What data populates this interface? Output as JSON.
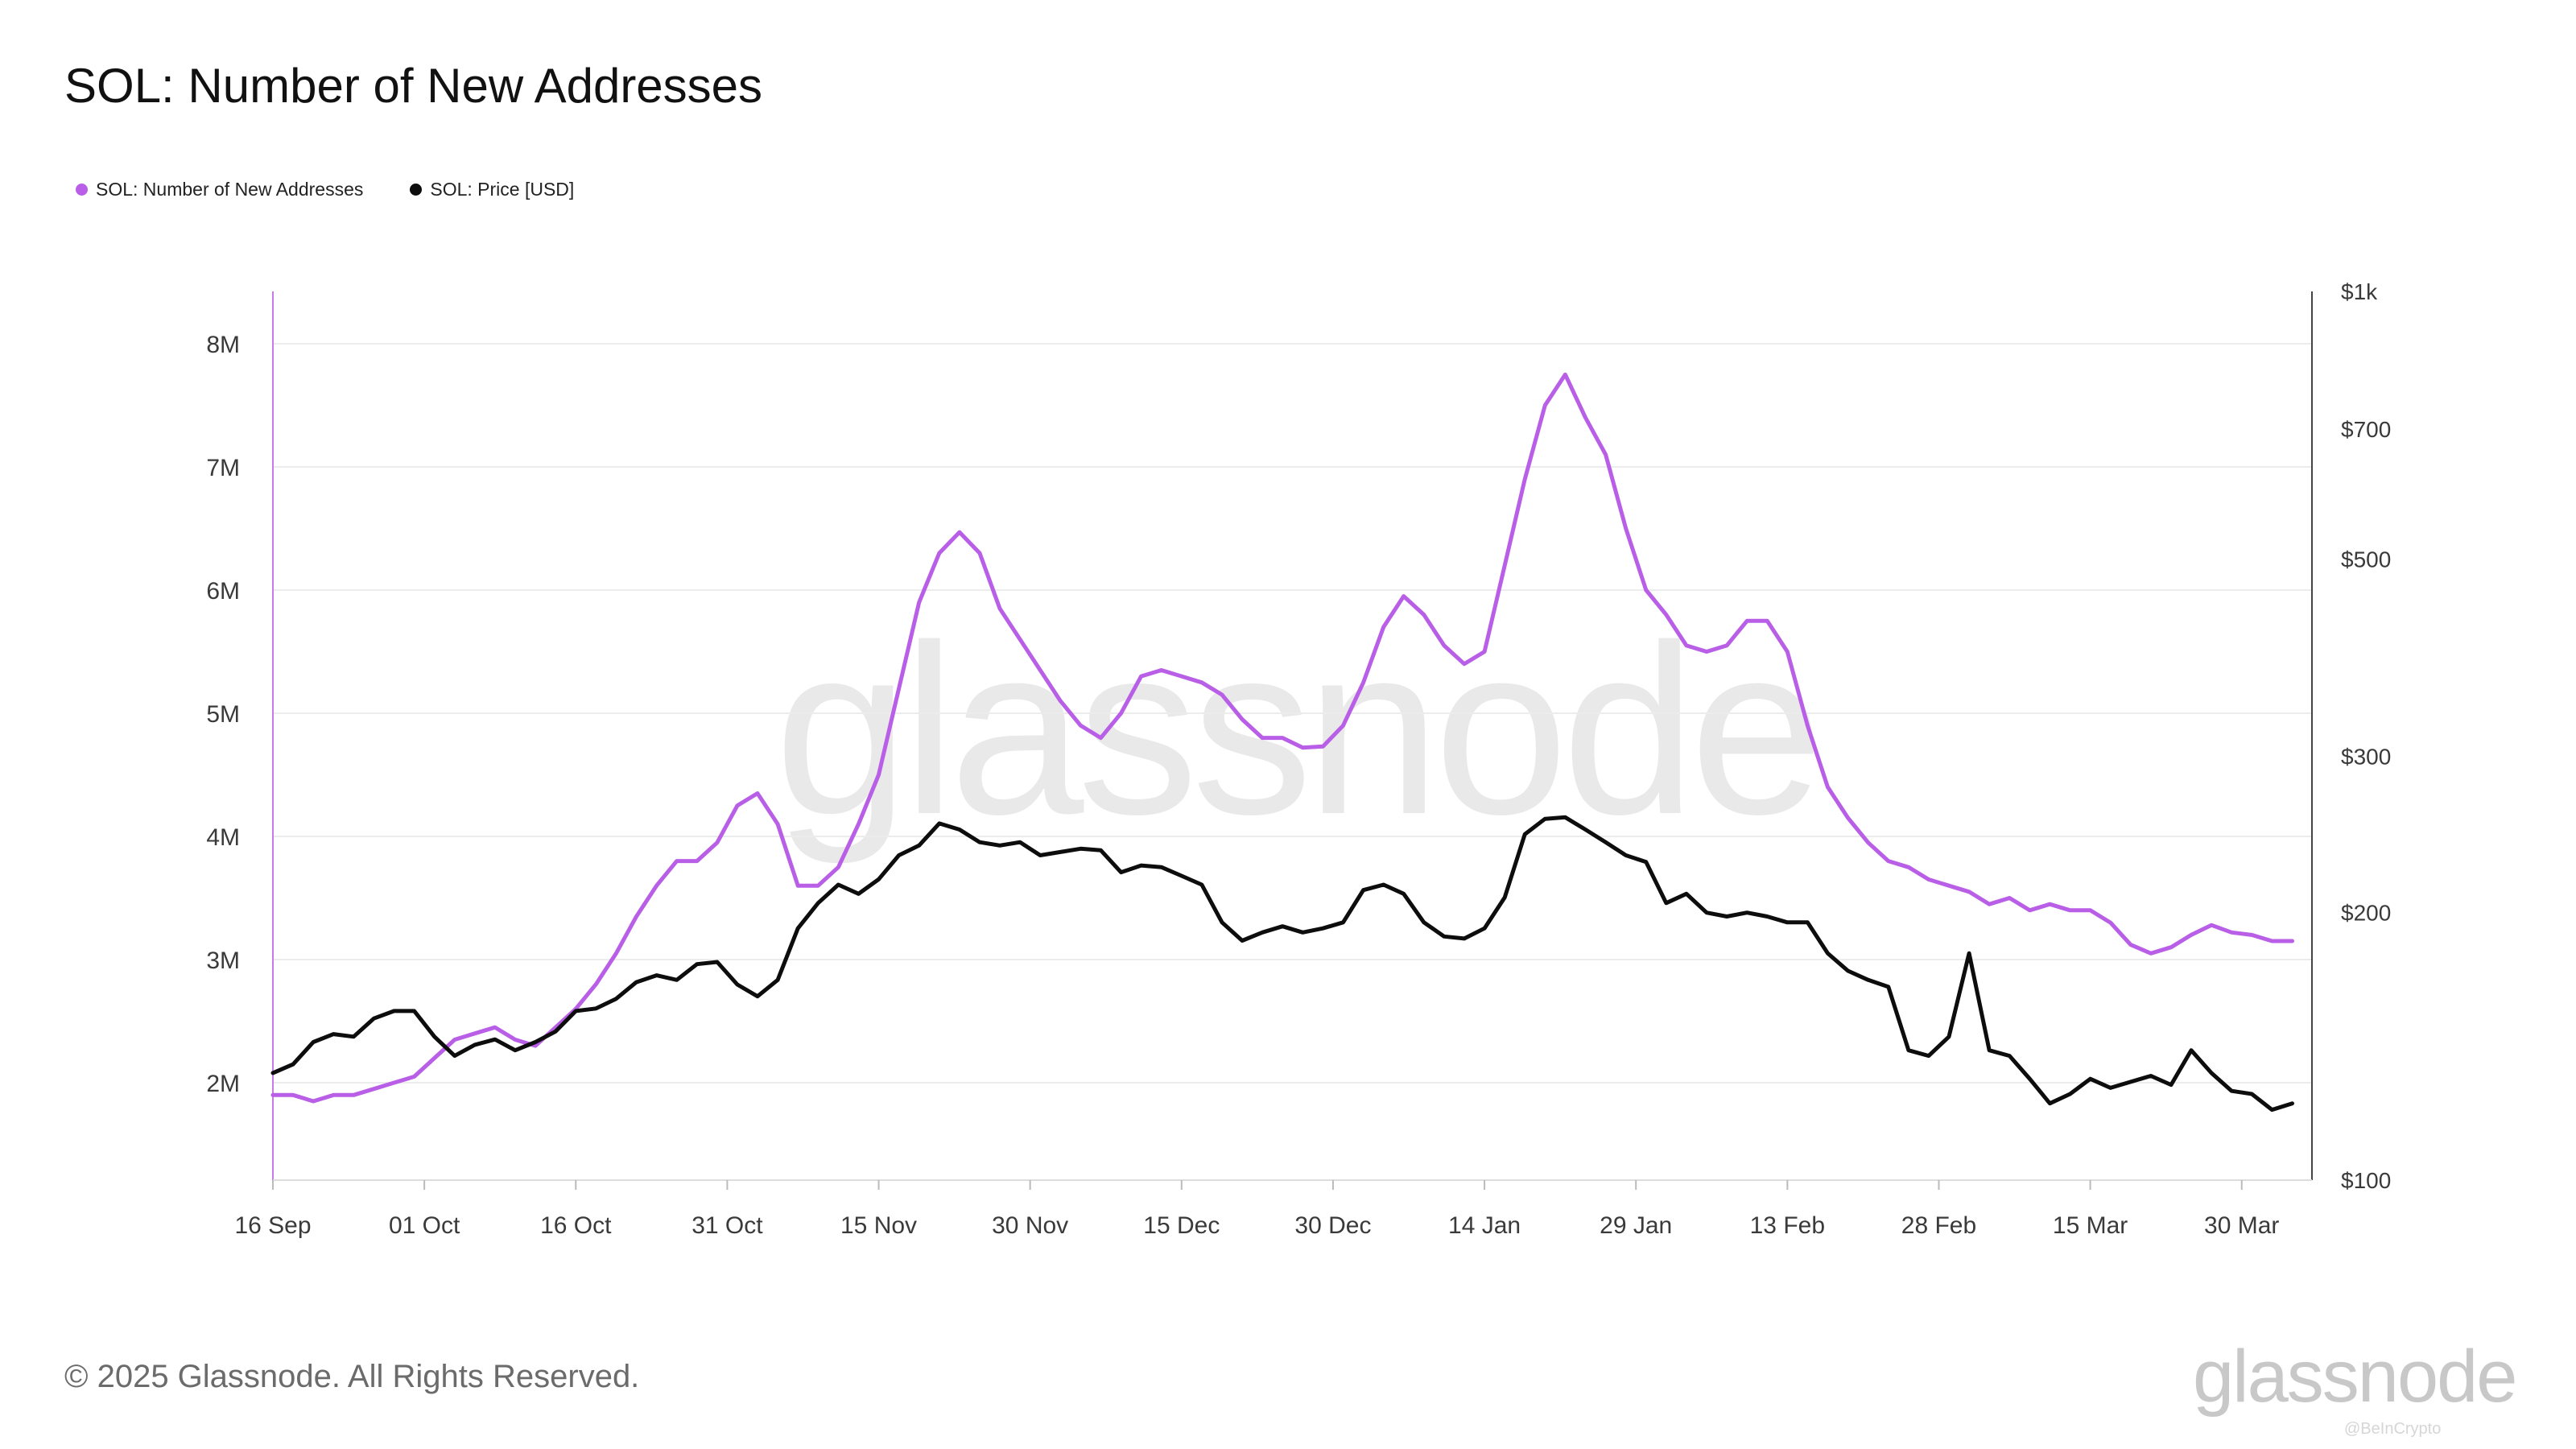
{
  "title": "SOL: Number of New Addresses",
  "legend": [
    {
      "label": "SOL: Number of New Addresses",
      "color": "#b95ee6"
    },
    {
      "label": "SOL: Price [USD]",
      "color": "#0d0d0d"
    }
  ],
  "watermark": "glassnode",
  "copyright": "© 2025 Glassnode. All Rights Reserved.",
  "footer_logo": "glassnode",
  "credit": "@BeInCrypto",
  "chart_data": {
    "type": "line",
    "title": "SOL: Number of New Addresses",
    "x_axis": {
      "type": "date",
      "start": "2024-09-16",
      "end": "2025-04-05",
      "ticks": [
        "16 Sep",
        "01 Oct",
        "16 Oct",
        "31 Oct",
        "15 Nov",
        "30 Nov",
        "15 Dec",
        "30 Dec",
        "14 Jan",
        "29 Jan",
        "13 Feb",
        "28 Feb",
        "15 Mar",
        "30 Mar"
      ]
    },
    "y_left": {
      "ticks": [
        "2M",
        "3M",
        "4M",
        "5M",
        "6M",
        "7M",
        "8M"
      ],
      "range": [
        1.2,
        8.4
      ],
      "unit": "M"
    },
    "y_right": {
      "scale": "log",
      "ticks": [
        "$100",
        "$200",
        "$300",
        "$500",
        "$700",
        "$1k"
      ],
      "tick_values": [
        100,
        200,
        300,
        500,
        700,
        1000
      ]
    },
    "grid": "horizontal",
    "legend_position": "top-left",
    "series": [
      {
        "name": "SOL: Number of New Addresses",
        "axis": "left",
        "color": "#b95ee6",
        "points": [
          [
            "2024-09-16",
            1.9
          ],
          [
            "2024-09-18",
            1.9
          ],
          [
            "2024-09-20",
            1.85
          ],
          [
            "2024-09-22",
            1.9
          ],
          [
            "2024-09-24",
            1.9
          ],
          [
            "2024-09-26",
            1.95
          ],
          [
            "2024-09-28",
            2.0
          ],
          [
            "2024-09-30",
            2.05
          ],
          [
            "2024-10-02",
            2.2
          ],
          [
            "2024-10-04",
            2.35
          ],
          [
            "2024-10-06",
            2.4
          ],
          [
            "2024-10-08",
            2.45
          ],
          [
            "2024-10-10",
            2.35
          ],
          [
            "2024-10-12",
            2.3
          ],
          [
            "2024-10-14",
            2.45
          ],
          [
            "2024-10-16",
            2.6
          ],
          [
            "2024-10-18",
            2.8
          ],
          [
            "2024-10-20",
            3.05
          ],
          [
            "2024-10-22",
            3.35
          ],
          [
            "2024-10-24",
            3.6
          ],
          [
            "2024-10-26",
            3.8
          ],
          [
            "2024-10-28",
            3.8
          ],
          [
            "2024-10-30",
            3.95
          ],
          [
            "2024-11-01",
            4.25
          ],
          [
            "2024-11-03",
            4.35
          ],
          [
            "2024-11-05",
            4.1
          ],
          [
            "2024-11-07",
            3.6
          ],
          [
            "2024-11-09",
            3.6
          ],
          [
            "2024-11-11",
            3.75
          ],
          [
            "2024-11-13",
            4.1
          ],
          [
            "2024-11-15",
            4.5
          ],
          [
            "2024-11-17",
            5.2
          ],
          [
            "2024-11-19",
            5.9
          ],
          [
            "2024-11-21",
            6.3
          ],
          [
            "2024-11-23",
            6.47
          ],
          [
            "2024-11-25",
            6.3
          ],
          [
            "2024-11-27",
            5.85
          ],
          [
            "2024-11-29",
            5.6
          ],
          [
            "2024-12-01",
            5.35
          ],
          [
            "2024-12-03",
            5.1
          ],
          [
            "2024-12-05",
            4.9
          ],
          [
            "2024-12-07",
            4.8
          ],
          [
            "2024-12-09",
            5.0
          ],
          [
            "2024-12-11",
            5.3
          ],
          [
            "2024-12-13",
            5.35
          ],
          [
            "2024-12-15",
            5.3
          ],
          [
            "2024-12-17",
            5.25
          ],
          [
            "2024-12-19",
            5.15
          ],
          [
            "2024-12-21",
            4.95
          ],
          [
            "2024-12-23",
            4.8
          ],
          [
            "2024-12-25",
            4.8
          ],
          [
            "2024-12-27",
            4.72
          ],
          [
            "2024-12-29",
            4.73
          ],
          [
            "2024-12-31",
            4.9
          ],
          [
            "2025-01-02",
            5.25
          ],
          [
            "2025-01-04",
            5.7
          ],
          [
            "2025-01-06",
            5.95
          ],
          [
            "2025-01-08",
            5.8
          ],
          [
            "2025-01-10",
            5.55
          ],
          [
            "2025-01-12",
            5.4
          ],
          [
            "2025-01-14",
            5.5
          ],
          [
            "2025-01-16",
            6.2
          ],
          [
            "2025-01-18",
            6.9
          ],
          [
            "2025-01-20",
            7.5
          ],
          [
            "2025-01-22",
            7.75
          ],
          [
            "2025-01-24",
            7.4
          ],
          [
            "2025-01-26",
            7.1
          ],
          [
            "2025-01-28",
            6.5
          ],
          [
            "2025-01-30",
            6.0
          ],
          [
            "2025-02-01",
            5.8
          ],
          [
            "2025-02-03",
            5.55
          ],
          [
            "2025-02-05",
            5.5
          ],
          [
            "2025-02-07",
            5.55
          ],
          [
            "2025-02-09",
            5.75
          ],
          [
            "2025-02-11",
            5.75
          ],
          [
            "2025-02-13",
            5.5
          ],
          [
            "2025-02-15",
            4.9
          ],
          [
            "2025-02-17",
            4.4
          ],
          [
            "2025-02-19",
            4.15
          ],
          [
            "2025-02-21",
            3.95
          ],
          [
            "2025-02-23",
            3.8
          ],
          [
            "2025-02-25",
            3.75
          ],
          [
            "2025-02-27",
            3.65
          ],
          [
            "2025-03-01",
            3.6
          ],
          [
            "2025-03-03",
            3.55
          ],
          [
            "2025-03-05",
            3.45
          ],
          [
            "2025-03-07",
            3.5
          ],
          [
            "2025-03-09",
            3.4
          ],
          [
            "2025-03-11",
            3.45
          ],
          [
            "2025-03-13",
            3.4
          ],
          [
            "2025-03-15",
            3.4
          ],
          [
            "2025-03-17",
            3.3
          ],
          [
            "2025-03-19",
            3.12
          ],
          [
            "2025-03-21",
            3.05
          ],
          [
            "2025-03-23",
            3.1
          ],
          [
            "2025-03-25",
            3.2
          ],
          [
            "2025-03-27",
            3.28
          ],
          [
            "2025-03-29",
            3.22
          ],
          [
            "2025-03-31",
            3.2
          ],
          [
            "2025-04-02",
            3.15
          ],
          [
            "2025-04-04",
            3.15
          ]
        ]
      },
      {
        "name": "SOL: Price [USD]",
        "axis": "right",
        "color": "#0d0d0d",
        "points": [
          [
            "2024-09-16",
            132
          ],
          [
            "2024-09-18",
            135
          ],
          [
            "2024-09-20",
            143
          ],
          [
            "2024-09-22",
            146
          ],
          [
            "2024-09-24",
            145
          ],
          [
            "2024-09-26",
            152
          ],
          [
            "2024-09-28",
            155
          ],
          [
            "2024-09-30",
            155
          ],
          [
            "2024-10-02",
            145
          ],
          [
            "2024-10-04",
            138
          ],
          [
            "2024-10-06",
            142
          ],
          [
            "2024-10-08",
            144
          ],
          [
            "2024-10-10",
            140
          ],
          [
            "2024-10-12",
            143
          ],
          [
            "2024-10-14",
            147
          ],
          [
            "2024-10-16",
            155
          ],
          [
            "2024-10-18",
            156
          ],
          [
            "2024-10-20",
            160
          ],
          [
            "2024-10-22",
            167
          ],
          [
            "2024-10-24",
            170
          ],
          [
            "2024-10-26",
            168
          ],
          [
            "2024-10-28",
            175
          ],
          [
            "2024-10-30",
            176
          ],
          [
            "2024-11-01",
            166
          ],
          [
            "2024-11-03",
            161
          ],
          [
            "2024-11-05",
            168
          ],
          [
            "2024-11-07",
            192
          ],
          [
            "2024-11-09",
            205
          ],
          [
            "2024-11-11",
            215
          ],
          [
            "2024-11-13",
            210
          ],
          [
            "2024-11-15",
            218
          ],
          [
            "2024-11-17",
            232
          ],
          [
            "2024-11-19",
            238
          ],
          [
            "2024-11-21",
            252
          ],
          [
            "2024-11-23",
            248
          ],
          [
            "2024-11-25",
            240
          ],
          [
            "2024-11-27",
            238
          ],
          [
            "2024-11-29",
            240
          ],
          [
            "2024-12-01",
            232
          ],
          [
            "2024-12-03",
            234
          ],
          [
            "2024-12-05",
            236
          ],
          [
            "2024-12-07",
            235
          ],
          [
            "2024-12-09",
            222
          ],
          [
            "2024-12-11",
            226
          ],
          [
            "2024-12-13",
            225
          ],
          [
            "2024-12-15",
            220
          ],
          [
            "2024-12-17",
            215
          ],
          [
            "2024-12-19",
            195
          ],
          [
            "2024-12-21",
            186
          ],
          [
            "2024-12-23",
            190
          ],
          [
            "2024-12-25",
            193
          ],
          [
            "2024-12-27",
            190
          ],
          [
            "2024-12-29",
            192
          ],
          [
            "2024-12-31",
            195
          ],
          [
            "2025-01-02",
            212
          ],
          [
            "2025-01-04",
            215
          ],
          [
            "2025-01-06",
            210
          ],
          [
            "2025-01-08",
            195
          ],
          [
            "2025-01-10",
            188
          ],
          [
            "2025-01-12",
            187
          ],
          [
            "2025-01-14",
            192
          ],
          [
            "2025-01-16",
            208
          ],
          [
            "2025-01-18",
            245
          ],
          [
            "2025-01-20",
            255
          ],
          [
            "2025-01-22",
            256
          ],
          [
            "2025-01-24",
            248
          ],
          [
            "2025-01-26",
            240
          ],
          [
            "2025-01-28",
            232
          ],
          [
            "2025-01-30",
            228
          ],
          [
            "2025-02-01",
            205
          ],
          [
            "2025-02-03",
            210
          ],
          [
            "2025-02-05",
            200
          ],
          [
            "2025-02-07",
            198
          ],
          [
            "2025-02-09",
            200
          ],
          [
            "2025-02-11",
            198
          ],
          [
            "2025-02-13",
            195
          ],
          [
            "2025-02-15",
            195
          ],
          [
            "2025-02-17",
            180
          ],
          [
            "2025-02-19",
            172
          ],
          [
            "2025-02-21",
            168
          ],
          [
            "2025-02-23",
            165
          ],
          [
            "2025-02-25",
            140
          ],
          [
            "2025-02-27",
            138
          ],
          [
            "2025-03-01",
            145
          ],
          [
            "2025-03-03",
            180
          ],
          [
            "2025-03-05",
            140
          ],
          [
            "2025-03-07",
            138
          ],
          [
            "2025-03-09",
            130
          ],
          [
            "2025-03-11",
            122
          ],
          [
            "2025-03-13",
            125
          ],
          [
            "2025-03-15",
            130
          ],
          [
            "2025-03-17",
            127
          ],
          [
            "2025-03-19",
            129
          ],
          [
            "2025-03-21",
            131
          ],
          [
            "2025-03-23",
            128
          ],
          [
            "2025-03-25",
            140
          ],
          [
            "2025-03-27",
            132
          ],
          [
            "2025-03-29",
            126
          ],
          [
            "2025-03-31",
            125
          ],
          [
            "2025-04-02",
            120
          ],
          [
            "2025-04-04",
            122
          ]
        ]
      }
    ]
  }
}
